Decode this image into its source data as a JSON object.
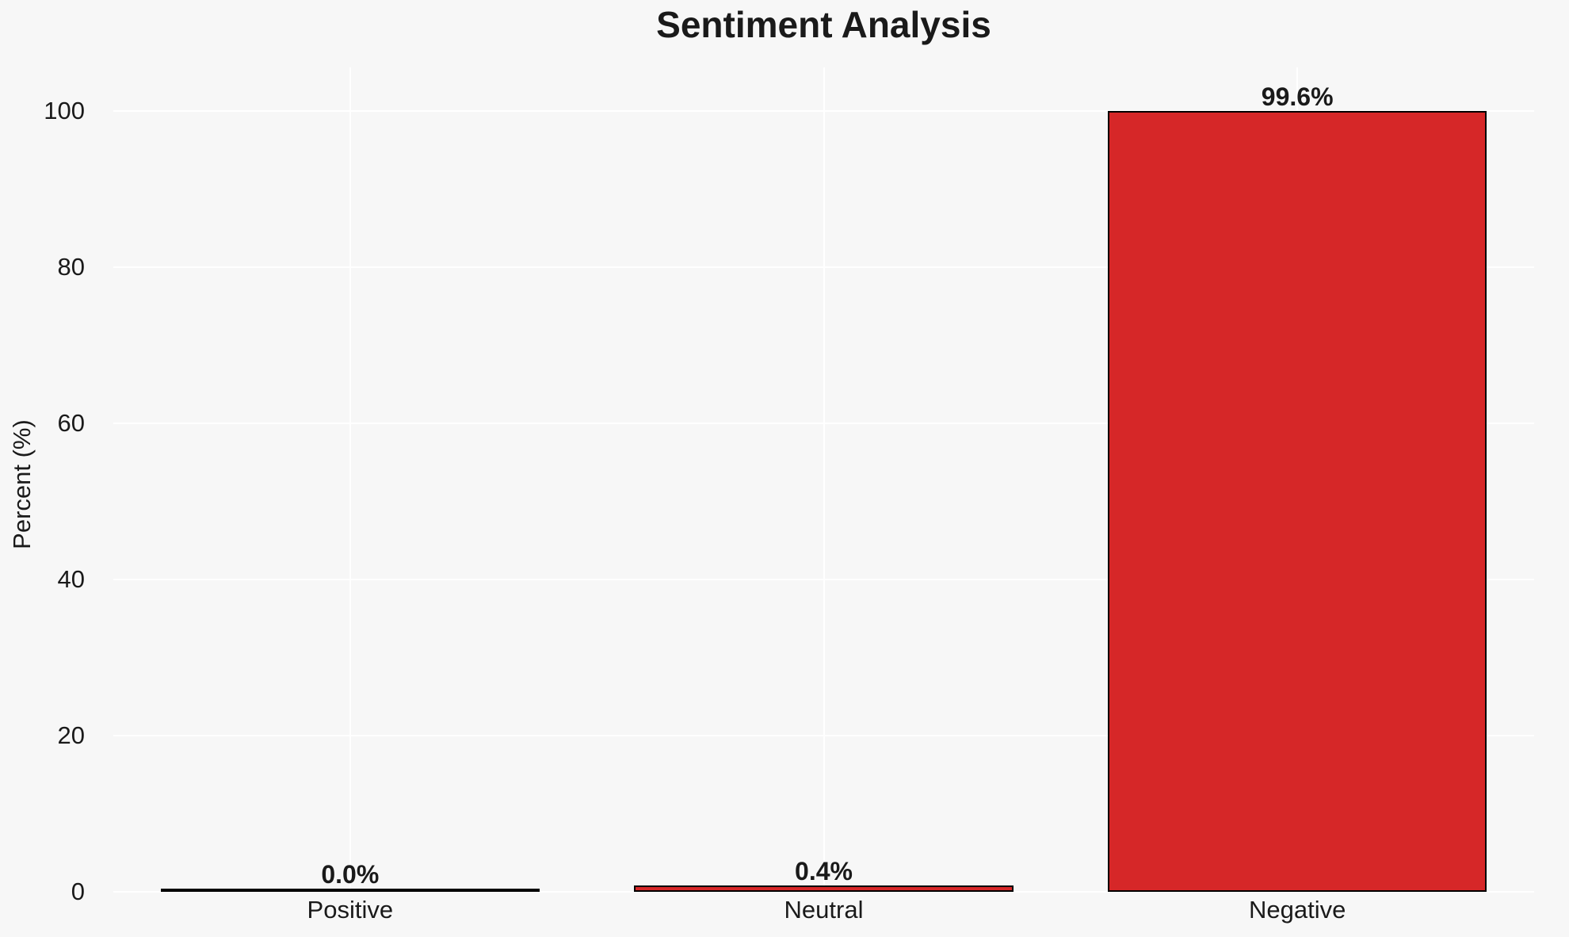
{
  "chart_data": {
    "type": "bar",
    "title": "Sentiment Analysis",
    "xlabel": "",
    "ylabel": "Percent (%)",
    "categories": [
      "Positive",
      "Neutral",
      "Negative"
    ],
    "values": [
      0.0,
      0.4,
      99.6
    ],
    "value_labels": [
      "0.0%",
      "0.4%",
      "99.6%"
    ],
    "yticks": [
      0,
      20,
      40,
      60,
      80,
      100
    ],
    "ylim": [
      0,
      105.6
    ],
    "bar_width_fraction": 0.8,
    "grid": true,
    "legend": "none",
    "colors": {
      "bar_fill": "#d62728",
      "bar_edge": "#000000",
      "background": "#f7f7f7",
      "gridline": "#ffffff",
      "text": "#1a1a1a"
    }
  }
}
